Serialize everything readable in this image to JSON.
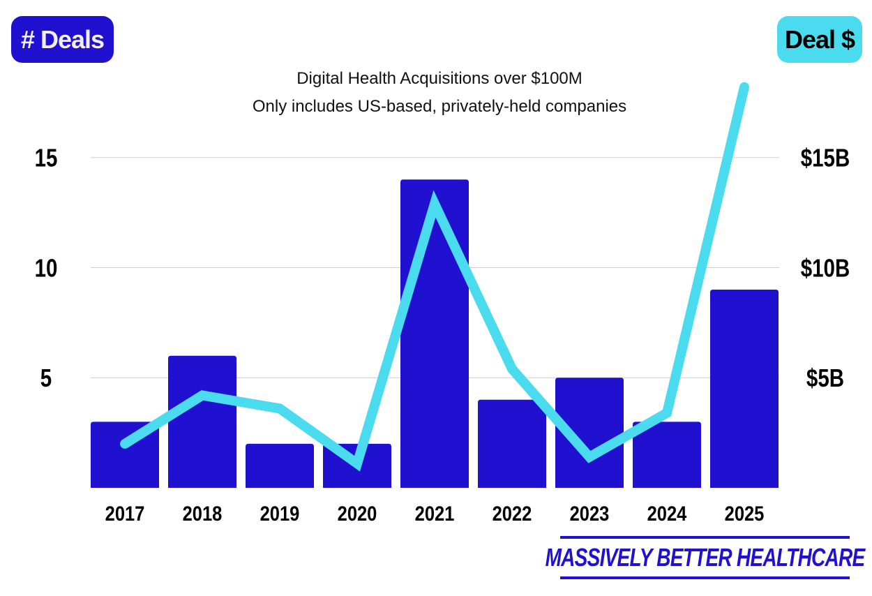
{
  "badges": {
    "left": "# Deals",
    "right": "Deal $"
  },
  "logo_text": "MASSIVELY BETTER HEALTHCARE",
  "chart_data": {
    "type": "bar+line",
    "title": "Digital Health Acquisitions over $100M",
    "subtitle": "Only includes US-based, privately-held companies",
    "categories": [
      "2017",
      "2018",
      "2019",
      "2020",
      "2021",
      "2022",
      "2023",
      "2024",
      "2025"
    ],
    "series": [
      {
        "name": "# Deals",
        "type": "bar",
        "axis": "left",
        "color": "#2010d0",
        "values": [
          3,
          6,
          2,
          2,
          14,
          4,
          5,
          3,
          9
        ]
      },
      {
        "name": "Deal $",
        "type": "line",
        "axis": "right",
        "unit": "$B",
        "color": "#4adbef",
        "values": [
          2.0,
          4.2,
          3.6,
          1.1,
          12.9,
          5.4,
          1.4,
          3.4,
          18.2
        ]
      }
    ],
    "left_axis": {
      "ticks": [
        5,
        10,
        15
      ],
      "tick_labels": [
        "5",
        "10",
        "15"
      ],
      "range": [
        0,
        15
      ]
    },
    "right_axis": {
      "ticks": [
        5,
        10,
        15
      ],
      "tick_labels": [
        "$5B",
        "$10B",
        "$15B"
      ],
      "range": [
        0,
        15
      ]
    },
    "grid": true
  }
}
